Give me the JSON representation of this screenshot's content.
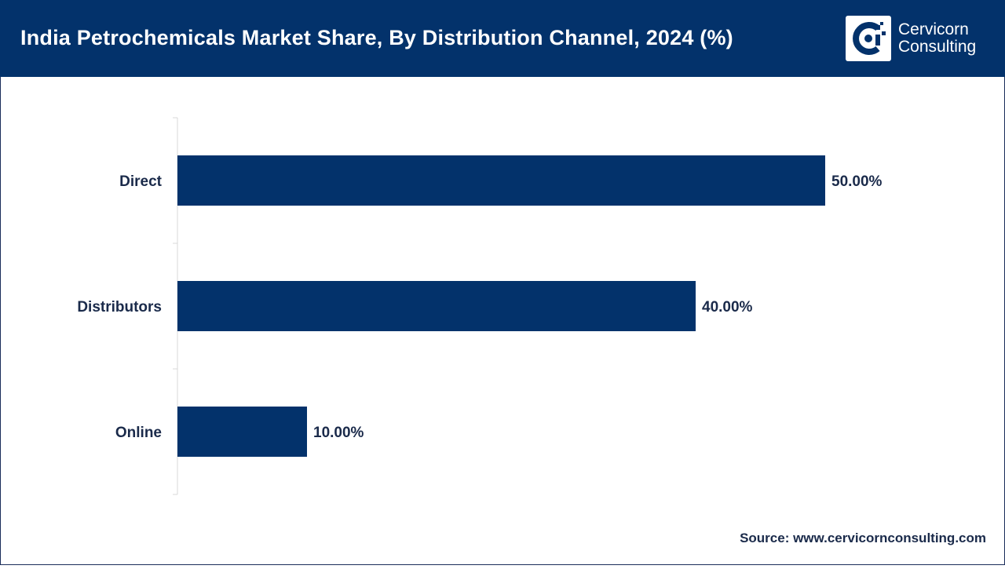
{
  "header": {
    "title": "India Petrochemicals Market Share, By Distribution Channel, 2024 (%)",
    "logo_line1": "Cervicorn",
    "logo_line2": "Consulting",
    "logo_icon": "cervicorn-logo-icon"
  },
  "colors": {
    "header_bg": "#03326b",
    "bar": "#03326b",
    "label": "#1a2a4a",
    "axis": "#d9d9d9"
  },
  "chart_data": {
    "type": "bar",
    "orientation": "horizontal",
    "categories": [
      "Direct",
      "Distributors",
      "Online"
    ],
    "values": [
      50.0,
      40.0,
      10.0
    ],
    "data_labels": [
      "50.00%",
      "40.00%",
      "10.00%"
    ],
    "title": "India Petrochemicals Market Share, By Distribution Channel, 2024 (%)",
    "xlabel": "",
    "ylabel": "",
    "xlim": [
      0,
      60
    ],
    "grid": false,
    "legend": "none"
  },
  "footer": {
    "source": "Source: www.cervicornconsulting.com"
  }
}
